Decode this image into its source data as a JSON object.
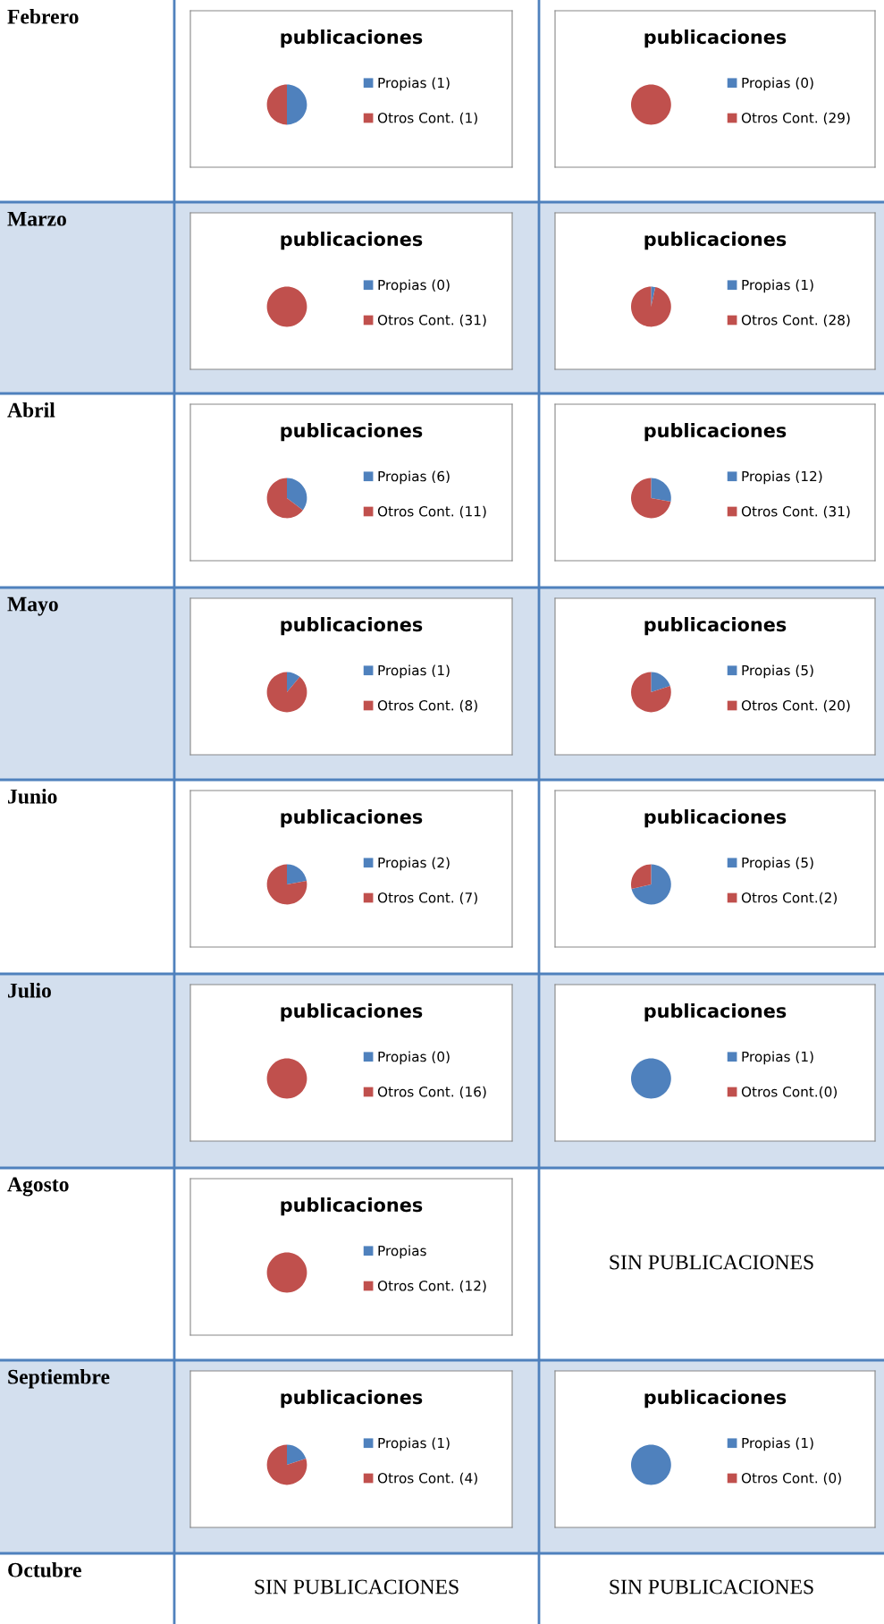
{
  "chart_data": [
    {
      "type": "other",
      "title": "Febrero"
    },
    {
      "type": "pie",
      "title": "publicaciones",
      "categories": [
        "Propias (1)",
        "Otros Cont. (1)"
      ],
      "values": [
        1,
        1
      ],
      "colors": [
        "#4f81bd",
        "#c0504d"
      ],
      "legend": "right"
    },
    {
      "type": "pie",
      "title": "publicaciones",
      "categories": [
        "Propias (0)",
        "Otros Cont. (29)"
      ],
      "values": [
        0,
        29
      ],
      "colors": [
        "#4f81bd",
        "#c0504d"
      ],
      "legend": "right"
    },
    {
      "type": "other",
      "title": "Marzo"
    },
    {
      "type": "pie",
      "title": "publicaciones",
      "categories": [
        "Propias (0)",
        "Otros Cont. (31)"
      ],
      "values": [
        0,
        31
      ],
      "colors": [
        "#4f81bd",
        "#c0504d"
      ],
      "legend": "right"
    },
    {
      "type": "pie",
      "title": "publicaciones",
      "categories": [
        "Propias (1)",
        "Otros Cont. (28)"
      ],
      "values": [
        1,
        28
      ],
      "colors": [
        "#4f81bd",
        "#c0504d"
      ],
      "legend": "right"
    },
    {
      "type": "other",
      "title": "Abril"
    },
    {
      "type": "pie",
      "title": "publicaciones",
      "categories": [
        "Propias (6)",
        "Otros Cont. (11)"
      ],
      "values": [
        6,
        11
      ],
      "colors": [
        "#4f81bd",
        "#c0504d"
      ],
      "legend": "right"
    },
    {
      "type": "pie",
      "title": "publicaciones",
      "categories": [
        "Propias (12)",
        "Otros Cont. (31)"
      ],
      "values": [
        12,
        31
      ],
      "colors": [
        "#4f81bd",
        "#c0504d"
      ],
      "legend": "right"
    },
    {
      "type": "other",
      "title": "Mayo"
    },
    {
      "type": "pie",
      "title": "publicaciones",
      "categories": [
        "Propias (1)",
        "Otros Cont. (8)"
      ],
      "values": [
        1,
        8
      ],
      "colors": [
        "#4f81bd",
        "#c0504d"
      ],
      "legend": "right"
    },
    {
      "type": "pie",
      "title": "publicaciones",
      "categories": [
        "Propias (5)",
        "Otros Cont. (20)"
      ],
      "values": [
        5,
        20
      ],
      "colors": [
        "#4f81bd",
        "#c0504d"
      ],
      "legend": "right"
    },
    {
      "type": "other",
      "title": "Junio"
    },
    {
      "type": "pie",
      "title": "publicaciones",
      "categories": [
        "Propias (2)",
        "Otros Cont. (7)"
      ],
      "values": [
        2,
        7
      ],
      "colors": [
        "#4f81bd",
        "#c0504d"
      ],
      "legend": "right"
    },
    {
      "type": "pie",
      "title": "publicaciones",
      "categories": [
        "Propias (5)",
        "Otros Cont.(2)"
      ],
      "values": [
        5,
        2
      ],
      "colors": [
        "#4f81bd",
        "#c0504d"
      ],
      "legend": "right"
    },
    {
      "type": "other",
      "title": "Julio"
    },
    {
      "type": "pie",
      "title": "publicaciones",
      "categories": [
        "Propias (0)",
        "Otros Cont. (16)"
      ],
      "values": [
        0,
        16
      ],
      "colors": [
        "#4f81bd",
        "#c0504d"
      ],
      "legend": "right"
    },
    {
      "type": "pie",
      "title": "publicaciones",
      "categories": [
        "Propias (1)",
        "Otros Cont.(0)"
      ],
      "values": [
        1,
        0
      ],
      "colors": [
        "#4f81bd",
        "#c0504d"
      ],
      "legend": "right"
    },
    {
      "type": "other",
      "title": "Agosto"
    },
    {
      "type": "pie",
      "title": "publicaciones",
      "categories": [
        "Propias",
        "Otros Cont. (12)"
      ],
      "values": [
        0,
        12
      ],
      "colors": [
        "#4f81bd",
        "#c0504d"
      ],
      "legend": "right"
    },
    {
      "type": "other",
      "title": "SIN PUBLICACIONES"
    },
    {
      "type": "other",
      "title": "Septiembre"
    },
    {
      "type": "pie",
      "title": "publicaciones",
      "categories": [
        "Propias (1)",
        "Otros Cont. (4)"
      ],
      "values": [
        1,
        4
      ],
      "colors": [
        "#4f81bd",
        "#c0504d"
      ],
      "legend": "right"
    },
    {
      "type": "pie",
      "title": "publicaciones",
      "categories": [
        "Propias (1)",
        "Otros Cont. (0)"
      ],
      "values": [
        1,
        0
      ],
      "colors": [
        "#4f81bd",
        "#c0504d"
      ],
      "legend": "right"
    },
    {
      "type": "other",
      "title": "Octubre"
    },
    {
      "type": "other",
      "title": "SIN PUBLICACIONES"
    },
    {
      "type": "other",
      "title": "SIN PUBLICACIONES"
    }
  ]
}
